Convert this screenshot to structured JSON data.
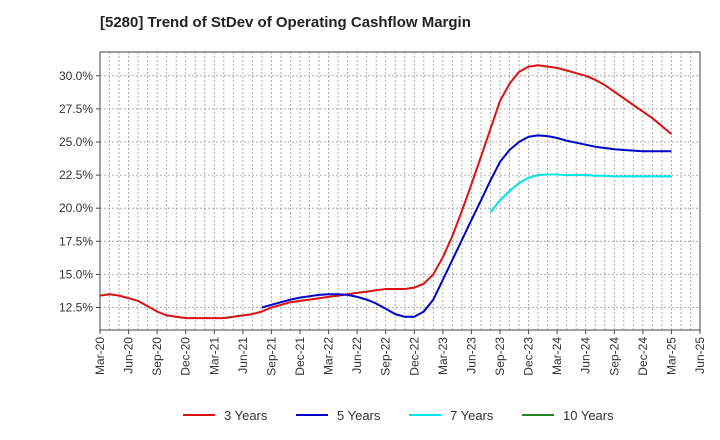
{
  "chart_data": {
    "type": "line",
    "title": "[5280]  Trend of StDev of Operating Cashflow Margin",
    "xlabel": "",
    "ylabel": "",
    "y_range": [
      10.8,
      31.8
    ],
    "y_ticks": [
      12.5,
      15.0,
      17.5,
      20.0,
      22.5,
      25.0,
      27.5,
      30.0
    ],
    "y_tick_labels": [
      "12.5%",
      "15.0%",
      "17.5%",
      "20.0%",
      "22.5%",
      "25.0%",
      "27.5%",
      "30.0%"
    ],
    "x_range": [
      "Mar-20",
      "Jun-25"
    ],
    "x_tick_labels": [
      "Mar-20",
      "Jun-20",
      "Sep-20",
      "Dec-20",
      "Mar-21",
      "Jun-21",
      "Sep-21",
      "Dec-21",
      "Mar-22",
      "Jun-22",
      "Sep-22",
      "Dec-22",
      "Mar-23",
      "Jun-23",
      "Sep-23",
      "Dec-23",
      "Mar-24",
      "Jun-24",
      "Sep-24",
      "Dec-24",
      "Mar-25",
      "Jun-25"
    ],
    "grid": true,
    "legend_position": "bottom",
    "series": [
      {
        "name": "3 Years",
        "color": "#dd1111",
        "points": [
          [
            "Mar-20",
            13.4
          ],
          [
            "Apr-20",
            13.5
          ],
          [
            "May-20",
            13.4
          ],
          [
            "Jun-20",
            13.2
          ],
          [
            "Jul-20",
            13.0
          ],
          [
            "Aug-20",
            12.6
          ],
          [
            "Sep-20",
            12.2
          ],
          [
            "Oct-20",
            11.9
          ],
          [
            "Nov-20",
            11.8
          ],
          [
            "Dec-20",
            11.7
          ],
          [
            "Jan-21",
            11.7
          ],
          [
            "Feb-21",
            11.7
          ],
          [
            "Mar-21",
            11.7
          ],
          [
            "Apr-21",
            11.7
          ],
          [
            "May-21",
            11.8
          ],
          [
            "Jun-21",
            11.9
          ],
          [
            "Jul-21",
            12.0
          ],
          [
            "Aug-21",
            12.2
          ],
          [
            "Sep-21",
            12.5
          ],
          [
            "Oct-21",
            12.7
          ],
          [
            "Nov-21",
            12.9
          ],
          [
            "Dec-21",
            13.0
          ],
          [
            "Jan-22",
            13.1
          ],
          [
            "Feb-22",
            13.2
          ],
          [
            "Mar-22",
            13.3
          ],
          [
            "Apr-22",
            13.4
          ],
          [
            "May-22",
            13.5
          ],
          [
            "Jun-22",
            13.6
          ],
          [
            "Jul-22",
            13.7
          ],
          [
            "Aug-22",
            13.8
          ],
          [
            "Sep-22",
            13.9
          ],
          [
            "Oct-22",
            13.9
          ],
          [
            "Nov-22",
            13.9
          ],
          [
            "Dec-22",
            14.0
          ],
          [
            "Jan-23",
            14.3
          ],
          [
            "Feb-23",
            15.0
          ],
          [
            "Mar-23",
            16.3
          ],
          [
            "Apr-23",
            17.9
          ],
          [
            "May-23",
            19.8
          ],
          [
            "Jun-23",
            21.8
          ],
          [
            "Jul-23",
            23.9
          ],
          [
            "Aug-23",
            26.0
          ],
          [
            "Sep-23",
            28.1
          ],
          [
            "Oct-23",
            29.4
          ],
          [
            "Nov-23",
            30.3
          ],
          [
            "Dec-23",
            30.7
          ],
          [
            "Jan-24",
            30.8
          ],
          [
            "Feb-24",
            30.7
          ],
          [
            "Mar-24",
            30.6
          ],
          [
            "Apr-24",
            30.4
          ],
          [
            "May-24",
            30.2
          ],
          [
            "Jun-24",
            30.0
          ],
          [
            "Jul-24",
            29.7
          ],
          [
            "Aug-24",
            29.3
          ],
          [
            "Sep-24",
            28.8
          ],
          [
            "Oct-24",
            28.3
          ],
          [
            "Nov-24",
            27.8
          ],
          [
            "Dec-24",
            27.3
          ],
          [
            "Jan-25",
            26.8
          ],
          [
            "Feb-25",
            26.2
          ],
          [
            "Mar-25",
            25.6
          ]
        ]
      },
      {
        "name": "5 Years",
        "color": "#0000cc",
        "points": [
          [
            "Aug-21",
            12.5
          ],
          [
            "Sep-21",
            12.7
          ],
          [
            "Oct-21",
            12.9
          ],
          [
            "Nov-21",
            13.1
          ],
          [
            "Dec-21",
            13.25
          ],
          [
            "Jan-22",
            13.35
          ],
          [
            "Feb-22",
            13.45
          ],
          [
            "Mar-22",
            13.5
          ],
          [
            "Apr-22",
            13.5
          ],
          [
            "May-22",
            13.45
          ],
          [
            "Jun-22",
            13.3
          ],
          [
            "Jul-22",
            13.1
          ],
          [
            "Aug-22",
            12.8
          ],
          [
            "Sep-22",
            12.4
          ],
          [
            "Oct-22",
            12.0
          ],
          [
            "Nov-22",
            11.8
          ],
          [
            "Dec-22",
            11.8
          ],
          [
            "Jan-23",
            12.2
          ],
          [
            "Feb-23",
            13.1
          ],
          [
            "Mar-23",
            14.6
          ],
          [
            "Apr-23",
            16.1
          ],
          [
            "May-23",
            17.6
          ],
          [
            "Jun-23",
            19.1
          ],
          [
            "Jul-23",
            20.6
          ],
          [
            "Aug-23",
            22.1
          ],
          [
            "Sep-23",
            23.5
          ],
          [
            "Oct-23",
            24.4
          ],
          [
            "Nov-23",
            25.0
          ],
          [
            "Dec-23",
            25.4
          ],
          [
            "Jan-24",
            25.5
          ],
          [
            "Feb-24",
            25.45
          ],
          [
            "Mar-24",
            25.3
          ],
          [
            "Apr-24",
            25.1
          ],
          [
            "May-24",
            24.95
          ],
          [
            "Jun-24",
            24.8
          ],
          [
            "Jul-24",
            24.65
          ],
          [
            "Aug-24",
            24.55
          ],
          [
            "Sep-24",
            24.45
          ],
          [
            "Oct-24",
            24.4
          ],
          [
            "Nov-24",
            24.35
          ],
          [
            "Dec-24",
            24.3
          ],
          [
            "Jan-25",
            24.3
          ],
          [
            "Feb-25",
            24.3
          ],
          [
            "Mar-25",
            24.3
          ]
        ]
      },
      {
        "name": "7 Years",
        "color": "#00e5e5",
        "points": [
          [
            "Aug-23",
            19.7
          ],
          [
            "Sep-23",
            20.6
          ],
          [
            "Oct-23",
            21.3
          ],
          [
            "Nov-23",
            21.9
          ],
          [
            "Dec-23",
            22.3
          ],
          [
            "Jan-24",
            22.5
          ],
          [
            "Feb-24",
            22.55
          ],
          [
            "Mar-24",
            22.55
          ],
          [
            "Apr-24",
            22.5
          ],
          [
            "May-24",
            22.5
          ],
          [
            "Jun-24",
            22.5
          ],
          [
            "Jul-24",
            22.45
          ],
          [
            "Aug-24",
            22.45
          ],
          [
            "Sep-24",
            22.4
          ],
          [
            "Oct-24",
            22.4
          ],
          [
            "Nov-24",
            22.4
          ],
          [
            "Dec-24",
            22.4
          ],
          [
            "Jan-25",
            22.4
          ],
          [
            "Feb-25",
            22.4
          ],
          [
            "Mar-25",
            22.4
          ]
        ]
      },
      {
        "name": "10 Years",
        "color": "#228822",
        "points": []
      }
    ]
  }
}
